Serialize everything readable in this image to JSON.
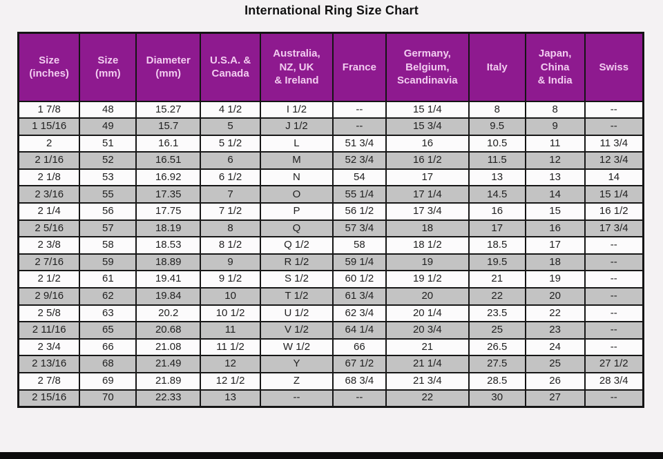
{
  "title": "International Ring Size Chart",
  "colors": {
    "header_bg": "#8e1a8f",
    "header_text": "#f2ccf0",
    "row_even_bg": "#c3c3c3",
    "row_odd_bg": "#fcfbfc",
    "border": "#141414",
    "page_bg": "#f4f2f3"
  },
  "missing_value": "--",
  "chart_data": {
    "type": "table",
    "title": "International Ring Size Chart",
    "columns": [
      "Size (inches)",
      "Size (mm)",
      "Diameter (mm)",
      "U.S.A. & Canada",
      "Australia, NZ, UK & Ireland",
      "France",
      "Germany, Belgium, Scandinavia",
      "Italy",
      "Japan, China & India",
      "Swiss"
    ],
    "header_lines": [
      "Size\n(inches)",
      "Size\n(mm)",
      "Diameter\n(mm)",
      "U.S.A. &\nCanada",
      "Australia,\nNZ, UK\n& Ireland",
      "France",
      "Germany,\nBelgium,\nScandinavia",
      "Italy",
      "Japan,\nChina\n& India",
      "Swiss"
    ],
    "rows": [
      [
        "1 7/8",
        "48",
        "15.27",
        "4 1/2",
        "I 1/2",
        "--",
        "15 1/4",
        "8",
        "8",
        "--"
      ],
      [
        "1 15/16",
        "49",
        "15.7",
        "5",
        "J 1/2",
        "--",
        "15 3/4",
        "9.5",
        "9",
        "--"
      ],
      [
        "2",
        "51",
        "16.1",
        "5 1/2",
        "L",
        "51 3/4",
        "16",
        "10.5",
        "11",
        "11 3/4"
      ],
      [
        "2 1/16",
        "52",
        "16.51",
        "6",
        "M",
        "52 3/4",
        "16 1/2",
        "11.5",
        "12",
        "12 3/4"
      ],
      [
        "2 1/8",
        "53",
        "16.92",
        "6 1/2",
        "N",
        "54",
        "17",
        "13",
        "13",
        "14"
      ],
      [
        "2 3/16",
        "55",
        "17.35",
        "7",
        "O",
        "55 1/4",
        "17 1/4",
        "14.5",
        "14",
        "15 1/4"
      ],
      [
        "2 1/4",
        "56",
        "17.75",
        "7 1/2",
        "P",
        "56 1/2",
        "17 3/4",
        "16",
        "15",
        "16 1/2"
      ],
      [
        "2 5/16",
        "57",
        "18.19",
        "8",
        "Q",
        "57 3/4",
        "18",
        "17",
        "16",
        "17 3/4"
      ],
      [
        "2 3/8",
        "58",
        "18.53",
        "8 1/2",
        "Q 1/2",
        "58",
        "18 1/2",
        "18.5",
        "17",
        "--"
      ],
      [
        "2 7/16",
        "59",
        "18.89",
        "9",
        "R 1/2",
        "59 1/4",
        "19",
        "19.5",
        "18",
        "--"
      ],
      [
        "2 1/2",
        "61",
        "19.41",
        "9 1/2",
        "S 1/2",
        "60 1/2",
        "19 1/2",
        "21",
        "19",
        "--"
      ],
      [
        "2 9/16",
        "62",
        "19.84",
        "10",
        "T 1/2",
        "61 3/4",
        "20",
        "22",
        "20",
        "--"
      ],
      [
        "2 5/8",
        "63",
        "20.2",
        "10 1/2",
        "U 1/2",
        "62 3/4",
        "20 1/4",
        "23.5",
        "22",
        "--"
      ],
      [
        "2 11/16",
        "65",
        "20.68",
        "11",
        "V 1/2",
        "64 1/4",
        "20 3/4",
        "25",
        "23",
        "--"
      ],
      [
        "2 3/4",
        "66",
        "21.08",
        "11 1/2",
        "W 1/2",
        "66",
        "21",
        "26.5",
        "24",
        "--"
      ],
      [
        "2 13/16",
        "68",
        "21.49",
        "12",
        "Y",
        "67 1/2",
        "21 1/4",
        "27.5",
        "25",
        "27 1/2"
      ],
      [
        "2 7/8",
        "69",
        "21.89",
        "12 1/2",
        "Z",
        "68 3/4",
        "21 3/4",
        "28.5",
        "26",
        "28 3/4"
      ],
      [
        "2 15/16",
        "70",
        "22.33",
        "13",
        "--",
        "--",
        "22",
        "30",
        "27",
        "--"
      ]
    ]
  }
}
